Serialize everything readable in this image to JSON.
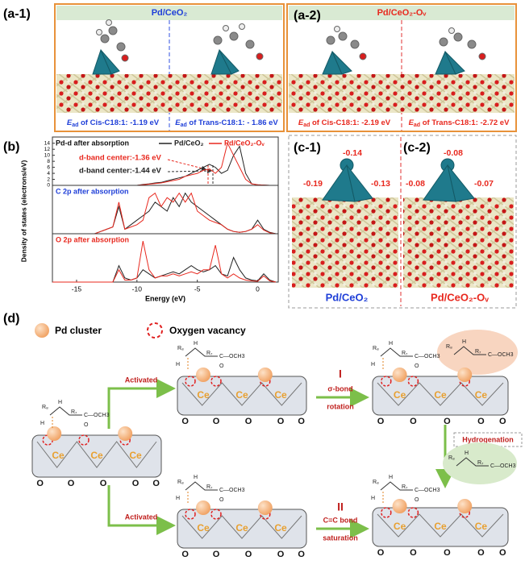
{
  "panel_a": {
    "a1": {
      "label": "(a-1)",
      "title": "Pd/CeO₂",
      "captions": [
        {
          "symbol": "E",
          "subscript": "ad",
          "text": " of Cis-C18:1: -1.19 eV"
        },
        {
          "symbol": "E",
          "subscript": "ad",
          "text": " of Trans-C18:1: - 1.86 eV"
        }
      ]
    },
    "a2": {
      "label": "(a-2)",
      "title": "Pd/CeO₂-Oᵥ",
      "captions": [
        {
          "symbol": "E",
          "subscript": "ad",
          "text": " of Cis-C18:1: -2.19 eV"
        },
        {
          "symbol": "E",
          "subscript": "ad",
          "text": " of Trans-C18:1: -2.72 eV"
        }
      ]
    }
  },
  "panel_b": {
    "label": "(b)",
    "y_label": "Density of states (electrons/eV)",
    "x_label": "Energy (eV)",
    "annotations": [
      "d-band center:-1.36 eV",
      "d-band center:-1.44 eV"
    ]
  },
  "chart_data": [
    {
      "type": "line",
      "title": "Pd-d after absorption",
      "title_color": "#111111",
      "legend": "top-right",
      "x": [
        -17,
        -16.5,
        -16,
        -15.5,
        -15,
        -14.5,
        -14,
        -13.5,
        -13,
        -12.5,
        -12,
        -11.5,
        -11,
        -10.5,
        -10,
        -9.5,
        -9,
        -8.5,
        -8,
        -7.5,
        -7,
        -6.5,
        -6,
        -5.5,
        -5,
        -4.5,
        -4,
        -3.5,
        -3,
        -2.5,
        -2,
        -1.5,
        -1,
        -0.5,
        0,
        0.5,
        1,
        1.5
      ],
      "xlim": [
        -17,
        1.7
      ],
      "ylim": [
        0,
        15
      ],
      "yticks": [
        0,
        2,
        4,
        6,
        8,
        10,
        12,
        14
      ],
      "series": [
        {
          "name": "Pd/CeO₂",
          "color": "#222222",
          "values": [
            0,
            0,
            0,
            0,
            0,
            0,
            0,
            0,
            0,
            0,
            0,
            0,
            0,
            0,
            0,
            0.3,
            0.5,
            0.8,
            1,
            1.5,
            2,
            2.5,
            3,
            4,
            5,
            6,
            7,
            6,
            4,
            5,
            10,
            13,
            4,
            0.5,
            0.2,
            0.1,
            0,
            0
          ]
        },
        {
          "name": "Pd/CeO₂-Oᵥ",
          "color": "#e8281e",
          "values": [
            0,
            0,
            0,
            0,
            0,
            0,
            0,
            0,
            0,
            0,
            0,
            0,
            0,
            0,
            0,
            0.2,
            0.4,
            0.6,
            0.8,
            1.2,
            1.6,
            2,
            3,
            3.5,
            4,
            5,
            5.5,
            4,
            6,
            14,
            10,
            6,
            2,
            0.5,
            0.2,
            0.1,
            0,
            0
          ]
        }
      ]
    },
    {
      "type": "line",
      "title": "C 2p after absorption",
      "title_color": "#1f3fd8",
      "x": [
        -17,
        -16.5,
        -16,
        -15.5,
        -15,
        -14.5,
        -14,
        -13.5,
        -13,
        -12.5,
        -12,
        -11.5,
        -11,
        -10.5,
        -10,
        -9.5,
        -9,
        -8.5,
        -8,
        -7.5,
        -7,
        -6.5,
        -6,
        -5.5,
        -5,
        -4.5,
        -4,
        -3.5,
        -3,
        -2.5,
        -2,
        -1.5,
        -1,
        -0.5,
        0,
        0.5,
        1,
        1.5
      ],
      "xlim": [
        -17,
        1.7
      ],
      "ylim": [
        0,
        10
      ],
      "series": [
        {
          "name": "Pd/CeO₂",
          "color": "#222222",
          "values": [
            0,
            0,
            0,
            0,
            0,
            0,
            0,
            0,
            0.5,
            1,
            1.5,
            6,
            1,
            2,
            3,
            4,
            5,
            7,
            6,
            5,
            8,
            6,
            9,
            7,
            6,
            5,
            4,
            3,
            2,
            1,
            0.5,
            0.3,
            0.5,
            1,
            3,
            1,
            0.3,
            0
          ]
        },
        {
          "name": "Pd/CeO₂-Oᵥ",
          "color": "#e8281e",
          "values": [
            0,
            0,
            0,
            0,
            0,
            0,
            0,
            0,
            0.5,
            1,
            1.5,
            7,
            1,
            1.5,
            2,
            3,
            8,
            9,
            6,
            8,
            7,
            9,
            7,
            9,
            5,
            4,
            3,
            2.5,
            2,
            1,
            0.5,
            0.3,
            0.5,
            1,
            2,
            0.8,
            0.2,
            0
          ]
        }
      ]
    },
    {
      "type": "line",
      "title": "O 2p after absorption",
      "title_color": "#e8281e",
      "x": [
        -17,
        -16.5,
        -16,
        -15.5,
        -15,
        -14.5,
        -14,
        -13.5,
        -13,
        -12.5,
        -12,
        -11.5,
        -11,
        -10.5,
        -10,
        -9.5,
        -9,
        -8.5,
        -8,
        -7.5,
        -7,
        -6.5,
        -6,
        -5.5,
        -5,
        -4.5,
        -4,
        -3.5,
        -3,
        -2.5,
        -2,
        -1.5,
        -1,
        -0.5,
        0,
        0.5,
        1,
        1.5
      ],
      "xlim": [
        -17,
        1.7
      ],
      "ylim": [
        0,
        11
      ],
      "xticks": [
        -15,
        -10,
        -5,
        0
      ],
      "series": [
        {
          "name": "Pd/CeO₂",
          "color": "#222222",
          "values": [
            0,
            0,
            0,
            0,
            0,
            0,
            0,
            0,
            0,
            0,
            0,
            4,
            1,
            0.5,
            1,
            3,
            2,
            1,
            1.5,
            2,
            2.5,
            2,
            3,
            4,
            3,
            2.5,
            3,
            4,
            2,
            1.5,
            6,
            3,
            1,
            0.5,
            0.3,
            2,
            0.5,
            0
          ]
        },
        {
          "name": "Pd/CeO₂-Oᵥ",
          "color": "#e8281e",
          "values": [
            0,
            0,
            0,
            0,
            0,
            0,
            0,
            0,
            0,
            0,
            0,
            3,
            0.5,
            0.5,
            1,
            10,
            3,
            1,
            1.5,
            1.5,
            2,
            1.5,
            2,
            2.5,
            2,
            3,
            3,
            9,
            2,
            1,
            2,
            1,
            0.5,
            0.3,
            0.2,
            1.5,
            0.3,
            0
          ]
        }
      ]
    }
  ],
  "panel_c": {
    "c1": {
      "label": "(c-1)",
      "charges": [
        "-0.14",
        "-0.19",
        "-0.13"
      ],
      "name": "Pd/CeO₂"
    },
    "c2": {
      "label": "(c-2)",
      "charges": [
        "-0.08",
        "-0.08",
        "-0.07"
      ],
      "name": "Pd/CeO₂-Oᵥ"
    }
  },
  "panel_d": {
    "label": "(d)",
    "legend": {
      "cluster": "Pd cluster",
      "vacancy": "Oxygen vacancy"
    },
    "slab": {
      "ce": "Ce",
      "o": "O"
    },
    "molecule": {
      "r8": "R₈",
      "r7": "R₇",
      "ester": "C—OCH3",
      "h": "H",
      "o": "O"
    },
    "steps": {
      "activated": "Activated",
      "route1": "I",
      "route1_text": [
        "σ-bond",
        "rotation"
      ],
      "hydrogenation": "Hydrogenation",
      "route2": "II",
      "route2_text": [
        "C=C bond",
        "saturation"
      ]
    }
  }
}
